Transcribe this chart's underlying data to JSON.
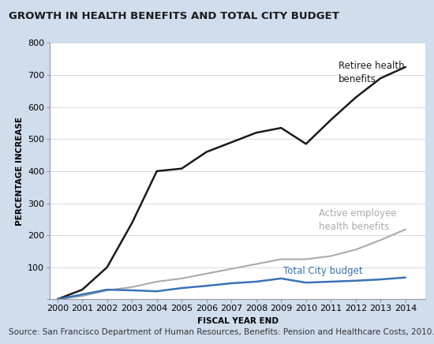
{
  "title": "GROWTH IN HEALTH BENEFITS AND TOTAL CITY BUDGET",
  "xlabel": "FISCAL YEAR END",
  "ylabel": "PERCENTAGE INCREASE",
  "source": "Source: San Francisco Department of Human Resources, Benefits: Pension and Healthcare Costs, 2010.",
  "years": [
    2000,
    2001,
    2002,
    2003,
    2004,
    2005,
    2006,
    2007,
    2008,
    2009,
    2010,
    2011,
    2012,
    2013,
    2014
  ],
  "retiree_health": [
    0,
    30,
    100,
    238,
    400,
    408,
    460,
    490,
    520,
    535,
    485,
    560,
    630,
    690,
    725
  ],
  "active_employee": [
    0,
    10,
    28,
    38,
    55,
    65,
    80,
    95,
    110,
    125,
    125,
    135,
    155,
    185,
    218
  ],
  "total_city": [
    0,
    15,
    30,
    28,
    25,
    35,
    42,
    50,
    55,
    65,
    52,
    55,
    58,
    62,
    68
  ],
  "retiree_color": "#1a1a1a",
  "active_color": "#aaaaaa",
  "city_color": "#3a72b5",
  "background_color": "#cfdded",
  "plot_bg": "#ffffff",
  "ylim": [
    0,
    800
  ],
  "yticks": [
    0,
    100,
    200,
    300,
    400,
    500,
    600,
    700,
    800
  ],
  "retiree_label": "Retiree health\nbenefits",
  "active_label": "Active employee\nhealth benefits",
  "city_label": "Total City budget",
  "title_fontsize": 9.5,
  "axis_label_fontsize": 7.5,
  "tick_fontsize": 8,
  "annotation_fontsize": 8.5,
  "source_fontsize": 7.5
}
